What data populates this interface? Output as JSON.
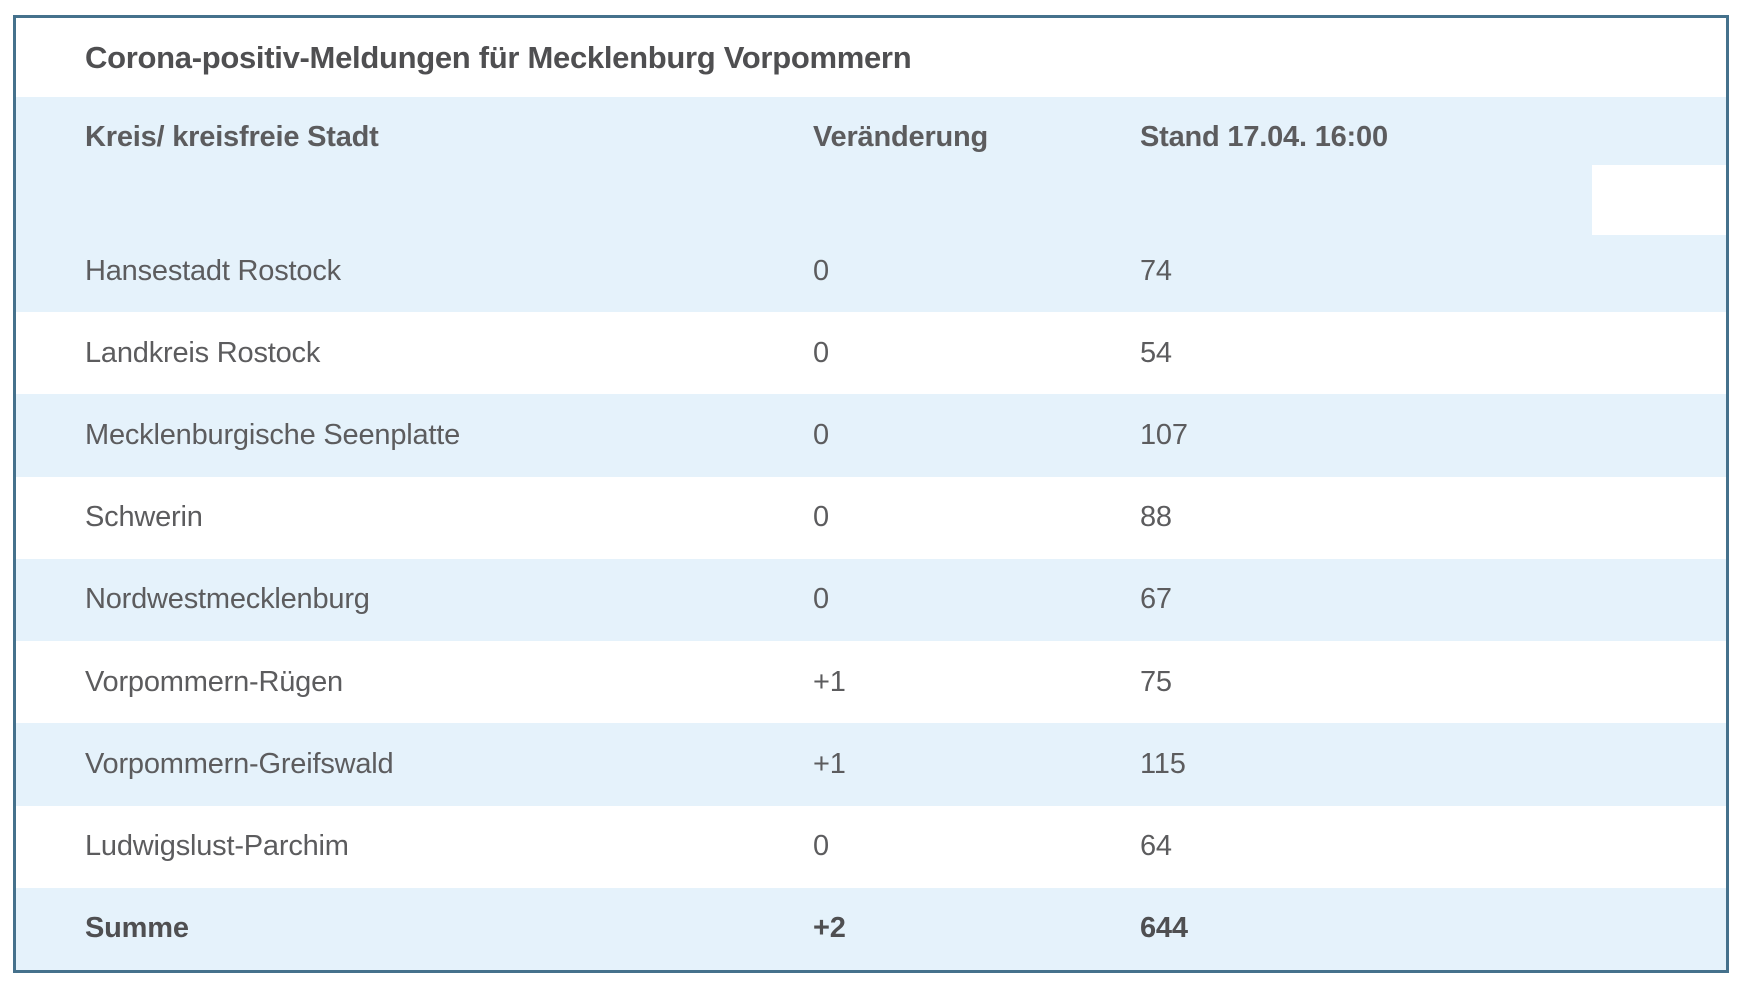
{
  "chart_data": {
    "type": "table",
    "title": "Corona-positiv-Meldungen für Mecklenburg Vorpommern",
    "columns": [
      "Kreis/ kreisfreie Stadt",
      "Veränderung",
      "Stand 17.04. 16:00"
    ],
    "rows": [
      {
        "kreis": "Hansestadt Rostock",
        "veraenderung": "0",
        "stand": "74"
      },
      {
        "kreis": "Landkreis Rostock",
        "veraenderung": "0",
        "stand": "54"
      },
      {
        "kreis": "Mecklenburgische Seenplatte",
        "veraenderung": "0",
        "stand": "107"
      },
      {
        "kreis": "Schwerin",
        "veraenderung": "0",
        "stand": "88"
      },
      {
        "kreis": "Nordwestmecklenburg",
        "veraenderung": "0",
        "stand": "67"
      },
      {
        "kreis": "Vorpommern-Rügen",
        "veraenderung": "+1",
        "stand": "75"
      },
      {
        "kreis": "Vorpommern-Greifswald",
        "veraenderung": "+1",
        "stand": "115"
      },
      {
        "kreis": "Ludwigslust-Parchim",
        "veraenderung": "0",
        "stand": "64"
      }
    ],
    "total_row": {
      "kreis": "Summe",
      "veraenderung": "+2",
      "stand": "644"
    },
    "layout_hints": {
      "striped": true,
      "stripe_starts_with": "header"
    }
  },
  "colors": {
    "table_border": "#45718c",
    "stripe_background": "#e5f2fb",
    "heading_text": "#4f4f51",
    "body_text": "#5c5c5e",
    "page_background": "#ffffff"
  }
}
